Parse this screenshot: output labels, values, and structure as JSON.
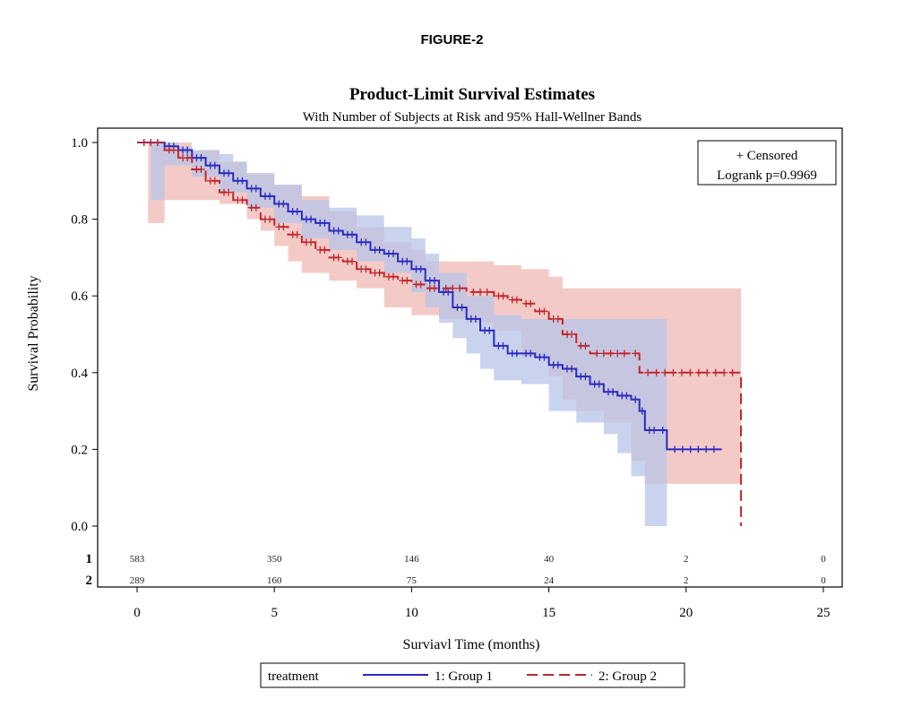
{
  "figure_label": "FIGURE-2",
  "chart_data": {
    "type": "line",
    "title": "Product-Limit Survival Estimates",
    "subtitle": "With Number of Subjects at Risk and 95% Hall-Wellner Bands",
    "xlabel": "Surviavl Time (months)",
    "ylabel": "Survival Probability",
    "xlim": [
      0,
      25
    ],
    "ylim": [
      0,
      1
    ],
    "x_ticks": [
      "0",
      "5",
      "10",
      "15",
      "20",
      "25"
    ],
    "y_ticks": [
      "0.0",
      "0.2",
      "0.4",
      "0.6",
      "0.8",
      "1.0"
    ],
    "inset_legend": {
      "censored_label": "+ Censored",
      "stat_label": "Logrank p=0.9969"
    },
    "legend": {
      "title": "treatment",
      "position": "bottom-center"
    },
    "at_risk": {
      "times": [
        0,
        5,
        10,
        15,
        20,
        25
      ],
      "rows": [
        {
          "label": "1",
          "values": [
            "583",
            "350",
            "146",
            "40",
            "2",
            "0"
          ]
        },
        {
          "label": "2",
          "values": [
            "289",
            "160",
            "75",
            "24",
            "2",
            "0"
          ]
        }
      ]
    },
    "series": [
      {
        "name": "1: Group 1",
        "color": "#2a2abf",
        "band_color": "#b8c4e8",
        "style": "solid",
        "steps": [
          [
            0,
            1.0
          ],
          [
            1,
            0.99
          ],
          [
            1.5,
            0.98
          ],
          [
            2,
            0.96
          ],
          [
            2.5,
            0.94
          ],
          [
            3,
            0.92
          ],
          [
            3.5,
            0.9
          ],
          [
            4,
            0.88
          ],
          [
            4.5,
            0.86
          ],
          [
            5,
            0.84
          ],
          [
            5.5,
            0.82
          ],
          [
            6,
            0.8
          ],
          [
            6.5,
            0.79
          ],
          [
            7,
            0.77
          ],
          [
            7.5,
            0.76
          ],
          [
            8,
            0.74
          ],
          [
            8.5,
            0.72
          ],
          [
            9,
            0.71
          ],
          [
            9.5,
            0.69
          ],
          [
            10,
            0.67
          ],
          [
            10.5,
            0.64
          ],
          [
            11,
            0.61
          ],
          [
            11.5,
            0.57
          ],
          [
            12,
            0.54
          ],
          [
            12.5,
            0.51
          ],
          [
            13,
            0.47
          ],
          [
            13.5,
            0.45
          ],
          [
            14,
            0.45
          ],
          [
            14.5,
            0.44
          ],
          [
            15,
            0.42
          ],
          [
            15.5,
            0.41
          ],
          [
            16,
            0.39
          ],
          [
            16.5,
            0.37
          ],
          [
            17,
            0.35
          ],
          [
            17.5,
            0.34
          ],
          [
            18,
            0.33
          ],
          [
            18.3,
            0.3
          ],
          [
            18.5,
            0.25
          ],
          [
            19,
            0.25
          ],
          [
            19.3,
            0.2
          ],
          [
            21.3,
            0.2
          ]
        ],
        "band_upper": [
          [
            0,
            1.0
          ],
          [
            1,
            1.0
          ],
          [
            1.5,
            0.99
          ],
          [
            2,
            0.98
          ],
          [
            3,
            0.97
          ],
          [
            3.5,
            0.95
          ],
          [
            4,
            0.92
          ],
          [
            5,
            0.89
          ],
          [
            6,
            0.85
          ],
          [
            7,
            0.83
          ],
          [
            8,
            0.81
          ],
          [
            9,
            0.78
          ],
          [
            10,
            0.75
          ],
          [
            10.5,
            0.71
          ],
          [
            11,
            0.66
          ],
          [
            12,
            0.6
          ],
          [
            13,
            0.55
          ],
          [
            14,
            0.54
          ],
          [
            15,
            0.54
          ],
          [
            17,
            0.54
          ],
          [
            19.3,
            0.54
          ]
        ],
        "band_lower": [
          [
            0,
            1.0
          ],
          [
            0.5,
            0.85
          ],
          [
            1,
            0.94
          ],
          [
            2,
            0.91
          ],
          [
            3,
            0.87
          ],
          [
            4,
            0.83
          ],
          [
            5,
            0.79
          ],
          [
            6,
            0.75
          ],
          [
            7,
            0.72
          ],
          [
            8,
            0.69
          ],
          [
            9,
            0.66
          ],
          [
            10,
            0.61
          ],
          [
            10.5,
            0.57
          ],
          [
            11,
            0.53
          ],
          [
            11.5,
            0.49
          ],
          [
            12,
            0.45
          ],
          [
            12.5,
            0.41
          ],
          [
            13,
            0.38
          ],
          [
            14,
            0.37
          ],
          [
            15,
            0.3
          ],
          [
            16,
            0.27
          ],
          [
            17,
            0.24
          ],
          [
            17.5,
            0.19
          ],
          [
            18,
            0.13
          ],
          [
            18.5,
            0.0
          ],
          [
            19.3,
            0.0
          ]
        ]
      },
      {
        "name": "2: Group 2",
        "color": "#c0262c",
        "band_color": "#f0b8b4",
        "style": "dashed",
        "steps": [
          [
            0,
            1.0
          ],
          [
            1,
            0.98
          ],
          [
            1.5,
            0.96
          ],
          [
            2,
            0.93
          ],
          [
            2.5,
            0.9
          ],
          [
            3,
            0.87
          ],
          [
            3.5,
            0.85
          ],
          [
            4,
            0.83
          ],
          [
            4.5,
            0.8
          ],
          [
            5,
            0.78
          ],
          [
            5.5,
            0.76
          ],
          [
            6,
            0.74
          ],
          [
            6.5,
            0.72
          ],
          [
            7,
            0.7
          ],
          [
            7.5,
            0.69
          ],
          [
            8,
            0.67
          ],
          [
            8.5,
            0.66
          ],
          [
            9,
            0.65
          ],
          [
            9.5,
            0.64
          ],
          [
            10,
            0.63
          ],
          [
            10.5,
            0.62
          ],
          [
            11,
            0.62
          ],
          [
            12,
            0.61
          ],
          [
            13,
            0.6
          ],
          [
            13.5,
            0.59
          ],
          [
            14,
            0.58
          ],
          [
            14.5,
            0.56
          ],
          [
            15,
            0.54
          ],
          [
            15.5,
            0.5
          ],
          [
            16,
            0.47
          ],
          [
            16.5,
            0.45
          ],
          [
            18,
            0.45
          ],
          [
            18.3,
            0.4
          ],
          [
            22,
            0.4
          ],
          [
            22,
            0.0
          ]
        ],
        "band_upper": [
          [
            0,
            1.0
          ],
          [
            0.4,
            1.0
          ],
          [
            1,
            1.0
          ],
          [
            2,
            0.98
          ],
          [
            3,
            0.95
          ],
          [
            4,
            0.92
          ],
          [
            5,
            0.89
          ],
          [
            6,
            0.86
          ],
          [
            7,
            0.82
          ],
          [
            8,
            0.78
          ],
          [
            9,
            0.74
          ],
          [
            10,
            0.72
          ],
          [
            10.5,
            0.69
          ],
          [
            12,
            0.69
          ],
          [
            13,
            0.68
          ],
          [
            14,
            0.67
          ],
          [
            15,
            0.65
          ],
          [
            15.5,
            0.62
          ],
          [
            22,
            0.62
          ]
        ],
        "band_lower": [
          [
            0,
            1.0
          ],
          [
            0.4,
            0.79
          ],
          [
            1,
            0.85
          ],
          [
            2,
            0.85
          ],
          [
            3,
            0.84
          ],
          [
            4,
            0.8
          ],
          [
            4.5,
            0.77
          ],
          [
            5,
            0.73
          ],
          [
            5.5,
            0.69
          ],
          [
            6,
            0.66
          ],
          [
            7,
            0.64
          ],
          [
            8,
            0.62
          ],
          [
            9,
            0.57
          ],
          [
            10,
            0.55
          ],
          [
            11,
            0.54
          ],
          [
            12,
            0.53
          ],
          [
            13,
            0.51
          ],
          [
            14,
            0.44
          ],
          [
            15,
            0.39
          ],
          [
            15.5,
            0.33
          ],
          [
            16,
            0.3
          ],
          [
            17,
            0.27
          ],
          [
            18,
            0.17
          ],
          [
            18.5,
            0.11
          ],
          [
            22,
            0.11
          ]
        ]
      }
    ]
  }
}
